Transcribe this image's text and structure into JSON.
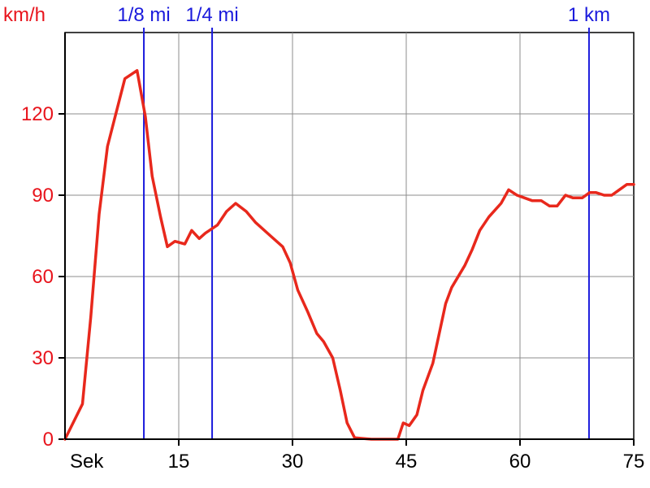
{
  "chart_data": {
    "type": "line",
    "x_unit_label": "Sek",
    "y_unit_label": "km/h",
    "xlim": [
      0,
      75
    ],
    "ylim": [
      0,
      150
    ],
    "x_ticks": [
      15,
      30,
      45,
      60,
      75
    ],
    "y_ticks": [
      0,
      30,
      60,
      90,
      120
    ],
    "grid": true,
    "markers": [
      {
        "label": "1/8 mi",
        "x": 10.4
      },
      {
        "label": "1/4 mi",
        "x": 19.4
      },
      {
        "label": "1 km",
        "x": 69.1
      }
    ],
    "series": [
      {
        "color": "#e8281c",
        "points": [
          [
            0,
            0
          ],
          [
            2.3,
            13
          ],
          [
            3.4,
            45
          ],
          [
            4.5,
            83
          ],
          [
            5.6,
            108
          ],
          [
            7.9,
            133
          ],
          [
            9.5,
            136
          ],
          [
            10.6,
            119
          ],
          [
            11.5,
            97
          ],
          [
            12.6,
            82
          ],
          [
            13.5,
            71
          ],
          [
            14.5,
            73
          ],
          [
            15.8,
            72
          ],
          [
            16.7,
            77
          ],
          [
            17.7,
            74
          ],
          [
            18.5,
            76
          ],
          [
            20.1,
            79
          ],
          [
            21.3,
            84
          ],
          [
            22.5,
            87
          ],
          [
            23.9,
            84
          ],
          [
            25.1,
            80
          ],
          [
            27.1,
            75
          ],
          [
            28.7,
            71
          ],
          [
            29.7,
            65
          ],
          [
            30.7,
            55
          ],
          [
            32.0,
            47
          ],
          [
            33.2,
            39
          ],
          [
            34.1,
            36
          ],
          [
            35.3,
            30
          ],
          [
            36.3,
            18
          ],
          [
            37.2,
            6
          ],
          [
            38.2,
            0.5
          ],
          [
            40.4,
            0
          ],
          [
            43.9,
            0
          ],
          [
            44.6,
            6
          ],
          [
            45.4,
            5
          ],
          [
            46.4,
            9
          ],
          [
            47.2,
            18
          ],
          [
            48.5,
            28
          ],
          [
            50.2,
            50
          ],
          [
            51.0,
            56
          ],
          [
            52.7,
            64
          ],
          [
            53.7,
            70
          ],
          [
            54.7,
            77
          ],
          [
            55.9,
            82
          ],
          [
            57.5,
            87
          ],
          [
            58.5,
            92
          ],
          [
            59.6,
            90
          ],
          [
            60.6,
            89
          ],
          [
            61.6,
            88
          ],
          [
            62.8,
            88
          ],
          [
            63.9,
            86
          ],
          [
            64.9,
            86
          ],
          [
            66.0,
            90
          ],
          [
            67.0,
            89
          ],
          [
            68.2,
            89
          ],
          [
            69.2,
            91
          ],
          [
            70.0,
            91
          ],
          [
            71.1,
            90
          ],
          [
            72.1,
            90
          ],
          [
            73.1,
            92
          ],
          [
            74.1,
            94
          ],
          [
            75,
            94
          ]
        ]
      }
    ]
  }
}
